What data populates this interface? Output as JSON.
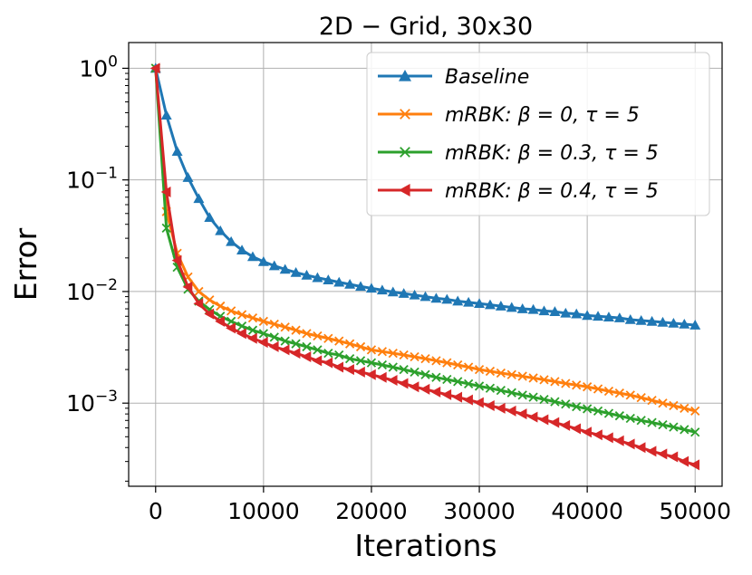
{
  "chart_data": {
    "type": "line",
    "title": "2D − Grid,    30x30",
    "xlabel": "Iterations",
    "ylabel": "Error",
    "xscale": "linear",
    "yscale": "log",
    "xlim": [
      -2500,
      52500
    ],
    "ylim": [
      0.00018,
      1.7
    ],
    "grid": true,
    "legend_position": "top-right",
    "xticks": [
      0,
      10000,
      20000,
      30000,
      40000,
      50000
    ],
    "xtick_labels": [
      "0",
      "10000",
      "20000",
      "30000",
      "40000",
      "50000"
    ],
    "yticks": [
      {
        "value": 1,
        "base": "10",
        "exp": "0"
      },
      {
        "value": 0.1,
        "base": "10",
        "exp": "−1"
      },
      {
        "value": 0.01,
        "base": "10",
        "exp": "−2"
      },
      {
        "value": 0.001,
        "base": "10",
        "exp": "−3"
      }
    ],
    "series": [
      {
        "name": "Baseline",
        "color": "#1f77b4",
        "marker": "triangle-up",
        "x": [
          0,
          1000,
          2000,
          3000,
          4000,
          5000,
          6000,
          7000,
          8000,
          9000,
          10000,
          11000,
          12000,
          13000,
          14000,
          15000,
          16000,
          17000,
          18000,
          19000,
          20000,
          21000,
          22000,
          23000,
          24000,
          25000,
          26000,
          27000,
          28000,
          29000,
          30000,
          31000,
          32000,
          33000,
          34000,
          35000,
          36000,
          37000,
          38000,
          39000,
          40000,
          41000,
          42000,
          43000,
          44000,
          45000,
          46000,
          47000,
          48000,
          49000,
          50000
        ],
        "y": [
          1.0,
          0.38,
          0.18,
          0.105,
          0.068,
          0.046,
          0.035,
          0.028,
          0.0235,
          0.0205,
          0.0185,
          0.017,
          0.0158,
          0.0148,
          0.014,
          0.0133,
          0.0127,
          0.0121,
          0.0116,
          0.0111,
          0.0107,
          0.0103,
          0.0099,
          0.0096,
          0.0093,
          0.009,
          0.0087,
          0.0085,
          0.0082,
          0.008,
          0.0078,
          0.0076,
          0.0074,
          0.0072,
          0.007,
          0.0069,
          0.0067,
          0.0066,
          0.0064,
          0.0063,
          0.0061,
          0.006,
          0.0059,
          0.0058,
          0.0056,
          0.0055,
          0.0054,
          0.0053,
          0.0052,
          0.0051,
          0.005
        ]
      },
      {
        "name": "mRBK: β = 0, τ = 5",
        "color": "#ff7f0e",
        "marker": "x",
        "x": [
          0,
          1000,
          2000,
          3000,
          4000,
          5000,
          6000,
          7000,
          8000,
          9000,
          10000,
          11000,
          12000,
          13000,
          14000,
          15000,
          16000,
          17000,
          18000,
          19000,
          20000,
          21000,
          22000,
          23000,
          24000,
          25000,
          26000,
          27000,
          28000,
          29000,
          30000,
          31000,
          32000,
          33000,
          34000,
          35000,
          36000,
          37000,
          38000,
          39000,
          40000,
          41000,
          42000,
          43000,
          44000,
          45000,
          46000,
          47000,
          48000,
          49000,
          50000
        ],
        "y": [
          1.0,
          0.052,
          0.022,
          0.0135,
          0.01,
          0.0084,
          0.0074,
          0.0067,
          0.0062,
          0.0058,
          0.0054,
          0.0051,
          0.0048,
          0.0045,
          0.0042,
          0.004,
          0.0038,
          0.0036,
          0.0034,
          0.0032,
          0.003,
          0.0029,
          0.0028,
          0.0027,
          0.0026,
          0.0025,
          0.0024,
          0.0023,
          0.0022,
          0.0021,
          0.002,
          0.00193,
          0.00186,
          0.0018,
          0.00174,
          0.00168,
          0.00162,
          0.00156,
          0.0015,
          0.00145,
          0.0014,
          0.00134,
          0.00128,
          0.00123,
          0.00118,
          0.00112,
          0.00106,
          0.001,
          0.00095,
          0.0009,
          0.00085
        ]
      },
      {
        "name": "mRBK: β = 0.3, τ = 5",
        "color": "#2ca02c",
        "marker": "x",
        "x": [
          0,
          1000,
          2000,
          3000,
          4000,
          5000,
          6000,
          7000,
          8000,
          9000,
          10000,
          11000,
          12000,
          13000,
          14000,
          15000,
          16000,
          17000,
          18000,
          19000,
          20000,
          21000,
          22000,
          23000,
          24000,
          25000,
          26000,
          27000,
          28000,
          29000,
          30000,
          31000,
          32000,
          33000,
          34000,
          35000,
          36000,
          37000,
          38000,
          39000,
          40000,
          41000,
          42000,
          43000,
          44000,
          45000,
          46000,
          47000,
          48000,
          49000,
          50000
        ],
        "y": [
          1.0,
          0.037,
          0.0165,
          0.0105,
          0.0082,
          0.0069,
          0.006,
          0.0054,
          0.0049,
          0.0045,
          0.0042,
          0.0039,
          0.0036,
          0.0034,
          0.0032,
          0.003,
          0.0028,
          0.0027,
          0.0025,
          0.0024,
          0.0023,
          0.0022,
          0.0021,
          0.002,
          0.0019,
          0.0018,
          0.0017,
          0.00163,
          0.00156,
          0.00149,
          0.00142,
          0.00136,
          0.0013,
          0.00124,
          0.00118,
          0.00113,
          0.00108,
          0.00103,
          0.00098,
          0.00093,
          0.00089,
          0.00085,
          0.00081,
          0.00077,
          0.00073,
          0.0007,
          0.00067,
          0.00064,
          0.00061,
          0.00058,
          0.00055
        ]
      },
      {
        "name": "mRBK: β = 0.4, τ = 5",
        "color": "#d62728",
        "marker": "triangle-left",
        "x": [
          0,
          1000,
          2000,
          3000,
          4000,
          5000,
          6000,
          7000,
          8000,
          9000,
          10000,
          11000,
          12000,
          13000,
          14000,
          15000,
          16000,
          17000,
          18000,
          19000,
          20000,
          21000,
          22000,
          23000,
          24000,
          25000,
          26000,
          27000,
          28000,
          29000,
          30000,
          31000,
          32000,
          33000,
          34000,
          35000,
          36000,
          37000,
          38000,
          39000,
          40000,
          41000,
          42000,
          43000,
          44000,
          45000,
          46000,
          47000,
          48000,
          49000,
          50000
        ],
        "y": [
          1.0,
          0.078,
          0.019,
          0.011,
          0.0078,
          0.0063,
          0.0054,
          0.0047,
          0.0042,
          0.0038,
          0.0035,
          0.0032,
          0.003,
          0.0028,
          0.0026,
          0.0024,
          0.0023,
          0.0021,
          0.002,
          0.0019,
          0.0018,
          0.0017,
          0.0016,
          0.0015,
          0.0014,
          0.00133,
          0.00126,
          0.00119,
          0.00113,
          0.00107,
          0.00101,
          0.00095,
          0.0009,
          0.00085,
          0.0008,
          0.00075,
          0.00071,
          0.00067,
          0.00063,
          0.00059,
          0.00055,
          0.00052,
          0.00049,
          0.00046,
          0.00043,
          0.0004,
          0.00037,
          0.00035,
          0.00033,
          0.0003,
          0.00028
        ]
      }
    ]
  }
}
